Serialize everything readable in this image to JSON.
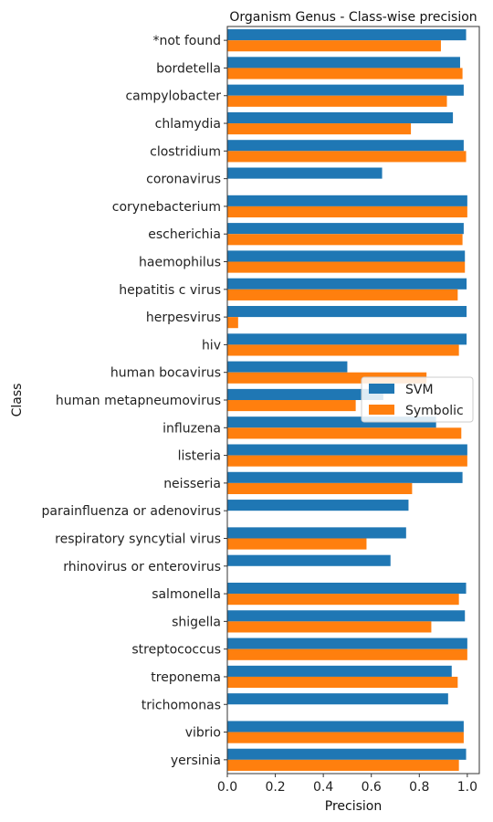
{
  "chart_data": {
    "type": "bar",
    "orientation": "horizontal",
    "title": "Organism Genus - Class-wise precision",
    "xlabel": "Precision",
    "ylabel": "Class",
    "xlim": [
      0,
      1.05
    ],
    "xticks": [
      "0.0",
      "0.2",
      "0.4",
      "0.6",
      "0.8",
      "1.0"
    ],
    "grid": false,
    "legend_position": "right",
    "categories": [
      "*not found",
      "bordetella",
      "campylobacter",
      "chlamydia",
      "clostridium",
      "coronavirus",
      "corynebacterium",
      "escherichia",
      "haemophilus",
      "hepatitis c virus",
      "herpesvirus",
      "hiv",
      "human bocavirus",
      "human metapneumovirus",
      "influzena",
      "listeria",
      "neisseria",
      "parainfluenza or adenovirus",
      "respiratory syncytial virus",
      "rhinovirus or enterovirus",
      "salmonella",
      "shigella",
      "streptococcus",
      "treponema",
      "trichomonas",
      "vibrio",
      "yersinia"
    ],
    "series": [
      {
        "name": "SVM",
        "color": "#1f77b4",
        "values": [
          0.995,
          0.97,
          0.985,
          0.94,
          0.985,
          0.645,
          1.0,
          0.985,
          0.99,
          0.997,
          0.997,
          0.997,
          0.5,
          0.65,
          0.87,
          1.0,
          0.98,
          0.755,
          0.745,
          0.68,
          0.995,
          0.99,
          1.0,
          0.935,
          0.92,
          0.985,
          0.995
        ]
      },
      {
        "name": "Symbolic",
        "color": "#ff7f0e",
        "values": [
          0.89,
          0.98,
          0.915,
          0.765,
          0.995,
          0,
          1.0,
          0.98,
          0.99,
          0.96,
          0.045,
          0.965,
          0.83,
          0.535,
          0.975,
          1.0,
          0.77,
          0,
          0.58,
          0,
          0.965,
          0.85,
          1.0,
          0.96,
          0,
          0.985,
          0.965
        ]
      }
    ]
  }
}
